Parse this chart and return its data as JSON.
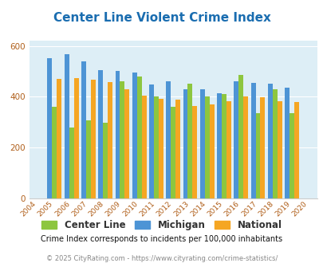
{
  "title": "Center Line Violent Crime Index",
  "all_years": [
    2004,
    2005,
    2006,
    2007,
    2008,
    2009,
    2010,
    2011,
    2012,
    2013,
    2014,
    2015,
    2016,
    2017,
    2018,
    2019,
    2020
  ],
  "data_years": [
    2005,
    2006,
    2007,
    2008,
    2009,
    2010,
    2011,
    2012,
    2013,
    2014,
    2015,
    2016,
    2017,
    2018,
    2019
  ],
  "center_line": [
    360,
    278,
    308,
    298,
    460,
    480,
    402,
    360,
    450,
    400,
    412,
    485,
    335,
    428,
    335
  ],
  "michigan": [
    552,
    568,
    540,
    505,
    500,
    495,
    447,
    460,
    430,
    430,
    415,
    462,
    455,
    452,
    437
  ],
  "national": [
    470,
    474,
    468,
    458,
    430,
    405,
    392,
    388,
    365,
    370,
    383,
    400,
    398,
    383,
    379
  ],
  "bar_color_cl": "#8dc63f",
  "bar_color_mi": "#4d94d5",
  "bar_color_na": "#f5a623",
  "bg_color": "#ddeef6",
  "ylim": [
    0,
    620
  ],
  "yticks": [
    0,
    200,
    400,
    600
  ],
  "tick_color": "#b05f1a",
  "title_color": "#1a6db0",
  "subtitle": "Crime Index corresponds to incidents per 100,000 inhabitants",
  "footer": "© 2025 CityRating.com - https://www.cityrating.com/crime-statistics/",
  "legend_labels": [
    "Center Line",
    "Michigan",
    "National"
  ]
}
